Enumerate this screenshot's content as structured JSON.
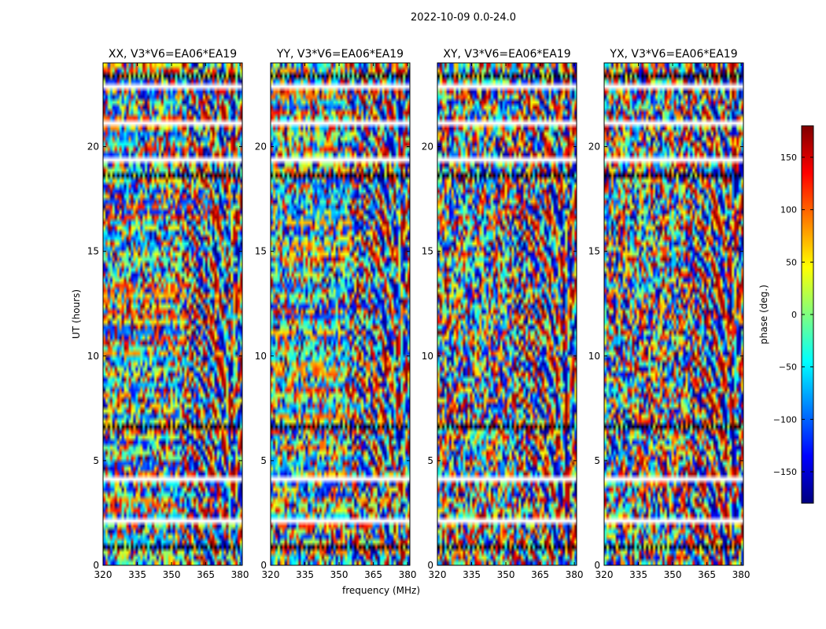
{
  "figure_title": "2022-10-09 0.0-24.0",
  "colorbar": {
    "label": "phase (deg.)",
    "range": [
      -180,
      180
    ],
    "ticks": [
      -150,
      -100,
      -50,
      0,
      50,
      100,
      150
    ],
    "tick_labels": [
      "−150",
      "−100",
      "−50",
      "0",
      "50",
      "100",
      "150"
    ],
    "colormap": [
      "#00007f",
      "#0000ff",
      "#007fff",
      "#00ffff",
      "#7fff7f",
      "#ffff00",
      "#ff7f00",
      "#ff0000",
      "#7f0000"
    ]
  },
  "chart_data": [
    {
      "type": "heatmap",
      "title": "XX, V3*V6=EA06*EA19",
      "xlabel": "",
      "ylabel": "UT (hours)",
      "xlim": [
        320,
        381
      ],
      "ylim": [
        0,
        24
      ],
      "xticks": [
        320,
        335,
        350,
        365,
        380
      ],
      "yticks": [
        0,
        5,
        10,
        15,
        20
      ],
      "value": "phase (deg.)"
    },
    {
      "type": "heatmap",
      "title": "YY, V3*V6=EA06*EA19",
      "xlabel": "frequency (MHz)",
      "ylabel": "",
      "xlim": [
        320,
        381
      ],
      "ylim": [
        0,
        24
      ],
      "xticks": [
        320,
        335,
        350,
        365,
        380
      ],
      "yticks": [
        0,
        5,
        10,
        15,
        20
      ],
      "value": "phase (deg.)"
    },
    {
      "type": "heatmap",
      "title": "XY, V3*V6=EA06*EA19",
      "xlabel": "",
      "ylabel": "",
      "xlim": [
        320,
        381
      ],
      "ylim": [
        0,
        24
      ],
      "xticks": [
        320,
        335,
        350,
        365,
        380
      ],
      "yticks": [
        0,
        5,
        10,
        15,
        20
      ],
      "value": "phase (deg.)"
    },
    {
      "type": "heatmap",
      "title": "YX, V3*V6=EA06*EA19",
      "xlabel": "",
      "ylabel": "",
      "xlim": [
        320,
        381
      ],
      "ylim": [
        0,
        24
      ],
      "xticks": [
        320,
        335,
        350,
        365,
        380
      ],
      "yticks": [
        0,
        5,
        10,
        15,
        20
      ],
      "value": "phase (deg.)"
    }
  ]
}
